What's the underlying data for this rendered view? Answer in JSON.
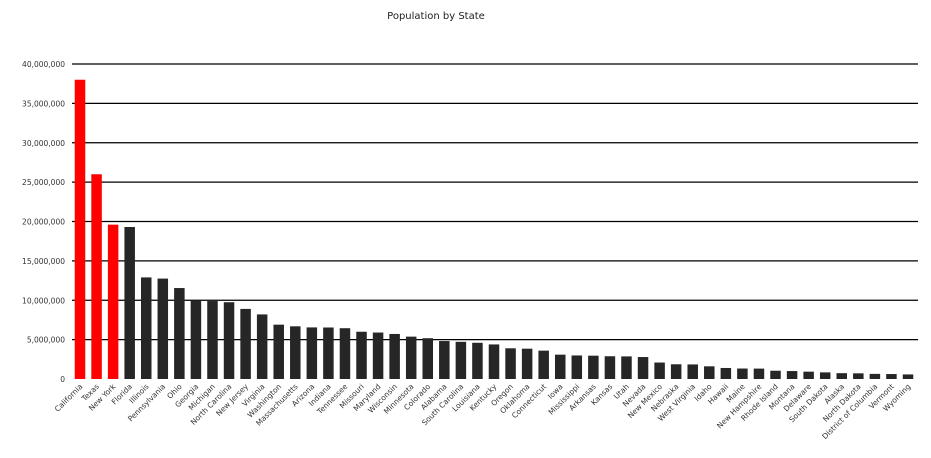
{
  "chart_data": {
    "type": "bar",
    "title": "Population by State",
    "xlabel": "",
    "ylabel": "",
    "ylim": [
      0,
      40000000
    ],
    "yticks": [
      "0",
      "5,000,000",
      "10,000,000",
      "15,000,000",
      "20,000,000",
      "25,000,000",
      "30,000,000",
      "35,000,000",
      "40,000,000"
    ],
    "grid": true,
    "colors": {
      "highlight": "#ff0000",
      "default": "#262626",
      "grid": "#000000"
    },
    "highlighted_count": 3,
    "categories": [
      "California",
      "Texas",
      "New York",
      "Florida",
      "Illinois",
      "Pennsylvania",
      "Ohio",
      "Georgia",
      "Michigan",
      "North Carolina",
      "New Jersey",
      "Virginia",
      "Washington",
      "Massachusetts",
      "Arizona",
      "Indiana",
      "Tennessee",
      "Missouri",
      "Maryland",
      "Wisconsin",
      "Minnesota",
      "Colorado",
      "Alabama",
      "South Carolina",
      "Louisiana",
      "Kentucky",
      "Oregon",
      "Oklahoma",
      "Connecticut",
      "Iowa",
      "Mississippi",
      "Arkansas",
      "Kansas",
      "Utah",
      "Nevada",
      "New Mexico",
      "Nebraska",
      "West Virginia",
      "Idaho",
      "Hawaii",
      "Maine",
      "New Hampshire",
      "Rhode Island",
      "Montana",
      "Delaware",
      "South Dakota",
      "Alaska",
      "North Dakota",
      "District of Columbia",
      "Vermont",
      "Wyoming"
    ],
    "values": [
      38000000,
      26000000,
      19600000,
      19300000,
      12900000,
      12750000,
      11550000,
      9990000,
      9900000,
      9750000,
      8900000,
      8200000,
      6900000,
      6690000,
      6550000,
      6540000,
      6450000,
      6000000,
      5900000,
      5720000,
      5380000,
      5180000,
      4820000,
      4720000,
      4600000,
      4390000,
      3900000,
      3850000,
      3600000,
      3090000,
      2990000,
      2960000,
      2890000,
      2870000,
      2790000,
      2090000,
      1870000,
      1850000,
      1610000,
      1400000,
      1330000,
      1320000,
      1050000,
      1010000,
      930000,
      840000,
      740000,
      720000,
      650000,
      630000,
      580000
    ]
  }
}
